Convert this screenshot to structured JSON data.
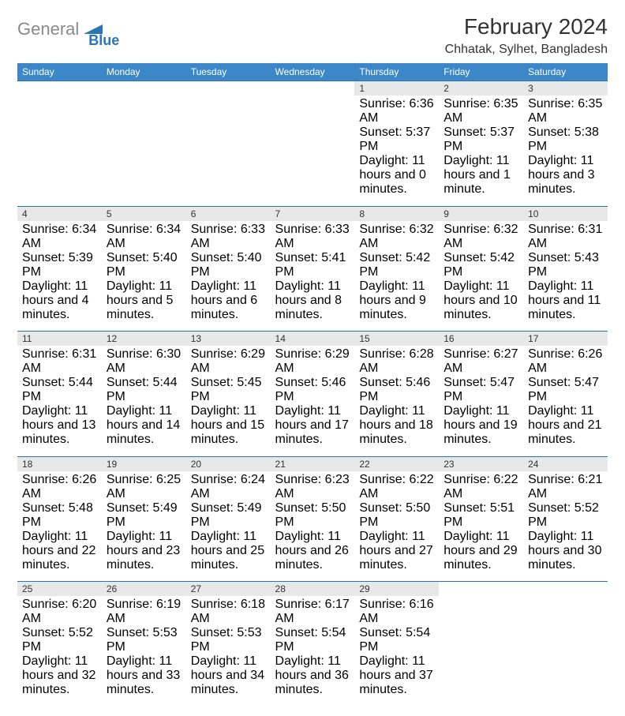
{
  "logo": {
    "word1": "General",
    "word2": "Blue"
  },
  "title": "February 2024",
  "location": "Chhatak, Sylhet, Bangladesh",
  "colors": {
    "header_bg": "#3b87c8",
    "header_text": "#ffffff",
    "daynum_bg": "#e8e8e8",
    "border": "#2a74b8",
    "logo_gray": "#8a8a8a",
    "logo_blue": "#2a74b8"
  },
  "day_headers": [
    "Sunday",
    "Monday",
    "Tuesday",
    "Wednesday",
    "Thursday",
    "Friday",
    "Saturday"
  ],
  "weeks": [
    [
      null,
      null,
      null,
      null,
      {
        "n": "1",
        "sr": "6:36 AM",
        "ss": "5:37 PM",
        "dl": "11 hours and 0 minutes."
      },
      {
        "n": "2",
        "sr": "6:35 AM",
        "ss": "5:37 PM",
        "dl": "11 hours and 1 minute."
      },
      {
        "n": "3",
        "sr": "6:35 AM",
        "ss": "5:38 PM",
        "dl": "11 hours and 3 minutes."
      }
    ],
    [
      {
        "n": "4",
        "sr": "6:34 AM",
        "ss": "5:39 PM",
        "dl": "11 hours and 4 minutes."
      },
      {
        "n": "5",
        "sr": "6:34 AM",
        "ss": "5:40 PM",
        "dl": "11 hours and 5 minutes."
      },
      {
        "n": "6",
        "sr": "6:33 AM",
        "ss": "5:40 PM",
        "dl": "11 hours and 6 minutes."
      },
      {
        "n": "7",
        "sr": "6:33 AM",
        "ss": "5:41 PM",
        "dl": "11 hours and 8 minutes."
      },
      {
        "n": "8",
        "sr": "6:32 AM",
        "ss": "5:42 PM",
        "dl": "11 hours and 9 minutes."
      },
      {
        "n": "9",
        "sr": "6:32 AM",
        "ss": "5:42 PM",
        "dl": "11 hours and 10 minutes."
      },
      {
        "n": "10",
        "sr": "6:31 AM",
        "ss": "5:43 PM",
        "dl": "11 hours and 11 minutes."
      }
    ],
    [
      {
        "n": "11",
        "sr": "6:31 AM",
        "ss": "5:44 PM",
        "dl": "11 hours and 13 minutes."
      },
      {
        "n": "12",
        "sr": "6:30 AM",
        "ss": "5:44 PM",
        "dl": "11 hours and 14 minutes."
      },
      {
        "n": "13",
        "sr": "6:29 AM",
        "ss": "5:45 PM",
        "dl": "11 hours and 15 minutes."
      },
      {
        "n": "14",
        "sr": "6:29 AM",
        "ss": "5:46 PM",
        "dl": "11 hours and 17 minutes."
      },
      {
        "n": "15",
        "sr": "6:28 AM",
        "ss": "5:46 PM",
        "dl": "11 hours and 18 minutes."
      },
      {
        "n": "16",
        "sr": "6:27 AM",
        "ss": "5:47 PM",
        "dl": "11 hours and 19 minutes."
      },
      {
        "n": "17",
        "sr": "6:26 AM",
        "ss": "5:47 PM",
        "dl": "11 hours and 21 minutes."
      }
    ],
    [
      {
        "n": "18",
        "sr": "6:26 AM",
        "ss": "5:48 PM",
        "dl": "11 hours and 22 minutes."
      },
      {
        "n": "19",
        "sr": "6:25 AM",
        "ss": "5:49 PM",
        "dl": "11 hours and 23 minutes."
      },
      {
        "n": "20",
        "sr": "6:24 AM",
        "ss": "5:49 PM",
        "dl": "11 hours and 25 minutes."
      },
      {
        "n": "21",
        "sr": "6:23 AM",
        "ss": "5:50 PM",
        "dl": "11 hours and 26 minutes."
      },
      {
        "n": "22",
        "sr": "6:22 AM",
        "ss": "5:50 PM",
        "dl": "11 hours and 27 minutes."
      },
      {
        "n": "23",
        "sr": "6:22 AM",
        "ss": "5:51 PM",
        "dl": "11 hours and 29 minutes."
      },
      {
        "n": "24",
        "sr": "6:21 AM",
        "ss": "5:52 PM",
        "dl": "11 hours and 30 minutes."
      }
    ],
    [
      {
        "n": "25",
        "sr": "6:20 AM",
        "ss": "5:52 PM",
        "dl": "11 hours and 32 minutes."
      },
      {
        "n": "26",
        "sr": "6:19 AM",
        "ss": "5:53 PM",
        "dl": "11 hours and 33 minutes."
      },
      {
        "n": "27",
        "sr": "6:18 AM",
        "ss": "5:53 PM",
        "dl": "11 hours and 34 minutes."
      },
      {
        "n": "28",
        "sr": "6:17 AM",
        "ss": "5:54 PM",
        "dl": "11 hours and 36 minutes."
      },
      {
        "n": "29",
        "sr": "6:16 AM",
        "ss": "5:54 PM",
        "dl": "11 hours and 37 minutes."
      },
      null,
      null
    ]
  ],
  "labels": {
    "sunrise": "Sunrise:",
    "sunset": "Sunset:",
    "daylight": "Daylight:"
  }
}
